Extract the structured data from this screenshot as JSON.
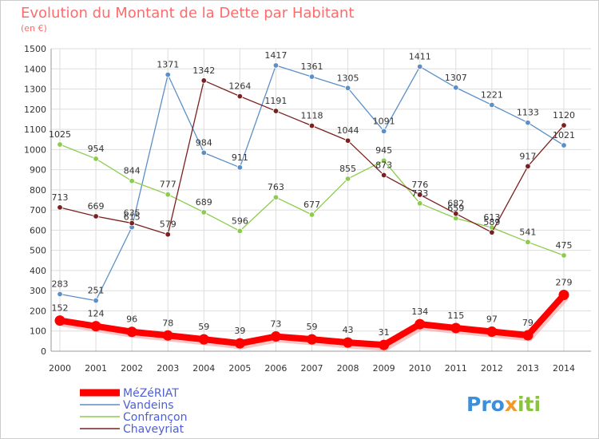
{
  "chart_data": {
    "type": "line",
    "title": "Evolution du Montant de la Dette par Habitant",
    "subtitle": "(en €)",
    "x": [
      "2000",
      "2001",
      "2002",
      "2003",
      "2004",
      "2005",
      "2006",
      "2007",
      "2008",
      "2009",
      "2010",
      "2011",
      "2012",
      "2013",
      "2014"
    ],
    "yticks": [
      "0",
      "100",
      "200",
      "300",
      "400",
      "500",
      "600",
      "700",
      "800",
      "900",
      "1000",
      "1100",
      "1200",
      "1300",
      "1400",
      "1500"
    ],
    "ylim": [
      0,
      1500
    ],
    "grid": true,
    "legend_position": "bottom-left",
    "series": [
      {
        "name": "MéZéRIAT",
        "color": "#ff0000",
        "values": [
          152,
          124,
          96,
          78,
          59,
          39,
          73,
          59,
          43,
          31,
          134,
          115,
          97,
          79,
          279
        ]
      },
      {
        "name": "Vandeins",
        "color": "#5b8fc7",
        "values": [
          283,
          251,
          615,
          1371,
          984,
          911,
          1417,
          1361,
          1305,
          1091,
          1411,
          1307,
          1221,
          1133,
          1021
        ]
      },
      {
        "name": "Confrançon",
        "color": "#8ccc4c",
        "values": [
          1025,
          954,
          844,
          777,
          689,
          596,
          763,
          677,
          855,
          945,
          733,
          659,
          613,
          541,
          475
        ]
      },
      {
        "name": "Chaveyriat",
        "color": "#7a2020",
        "values": [
          713,
          669,
          635,
          579,
          1342,
          1264,
          1191,
          1118,
          1044,
          873,
          776,
          682,
          589,
          917,
          1120
        ]
      }
    ]
  },
  "logo": {
    "part1": "Pro",
    "part2": "x",
    "part3": "iti"
  }
}
